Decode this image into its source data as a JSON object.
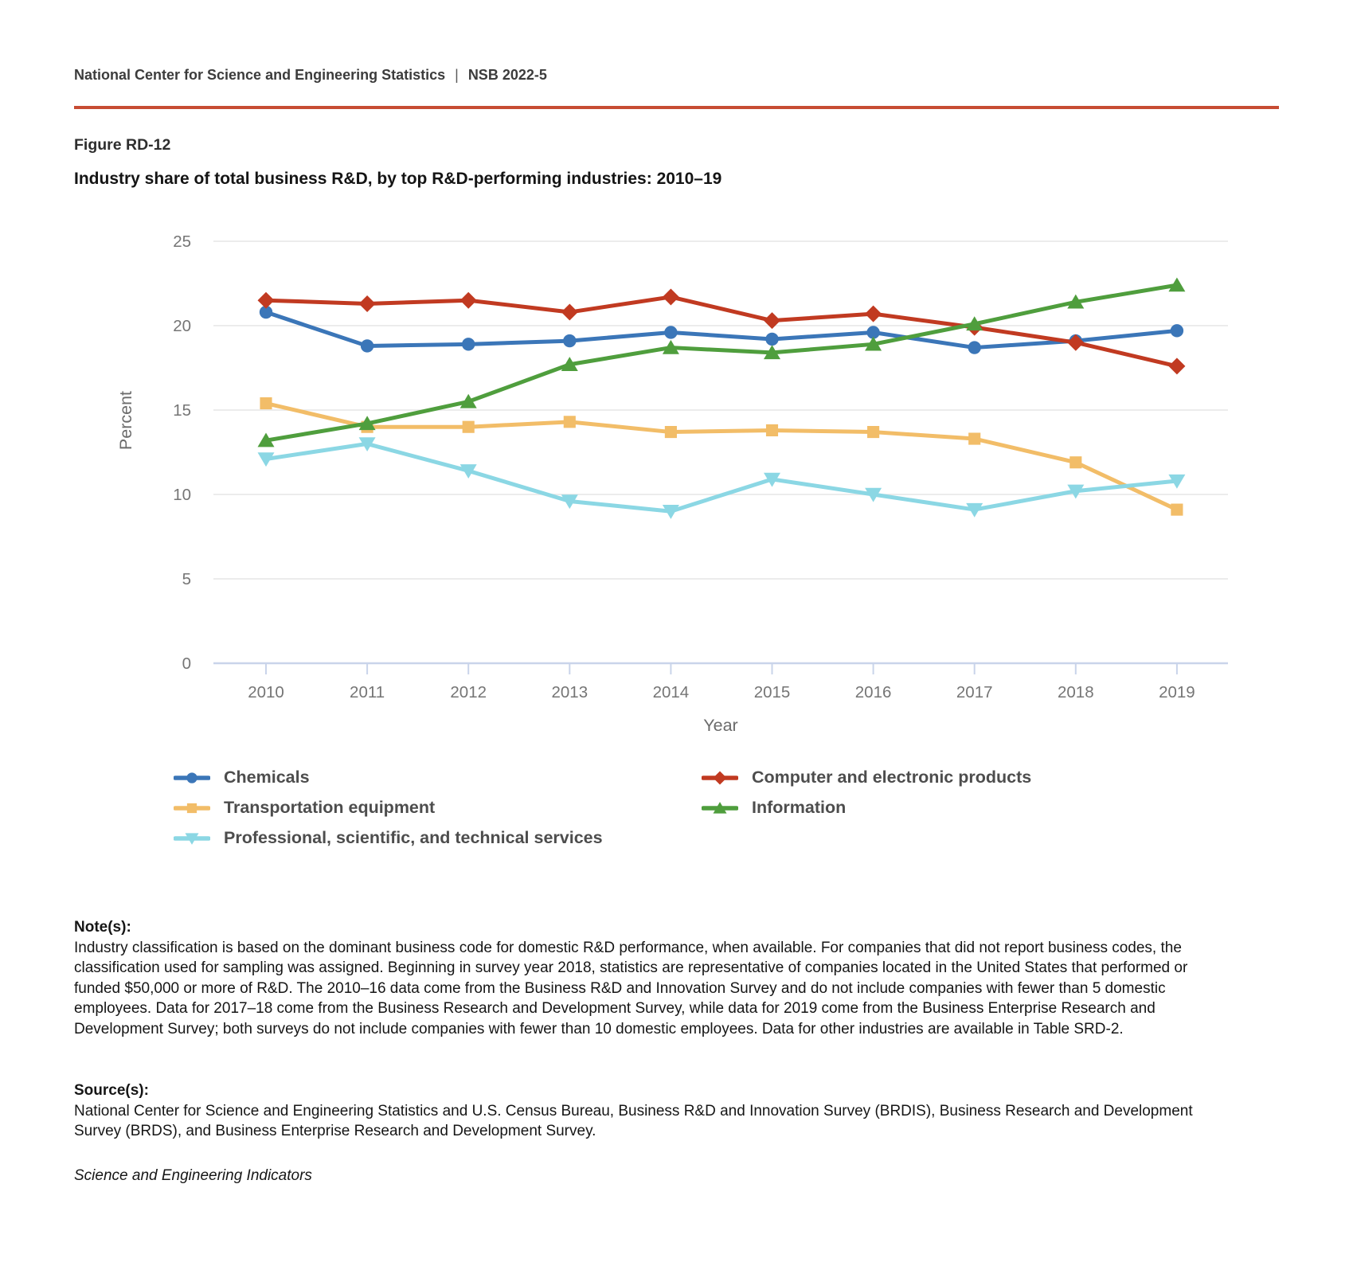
{
  "header": {
    "left": "National Center for Science and Engineering Statistics",
    "separator": "|",
    "right": "NSB 2022-5"
  },
  "figure": {
    "label": "Figure RD-12",
    "title": "Industry share of total business R&D, by top R&D-performing industries: 2010–19"
  },
  "chart_data": {
    "type": "line",
    "x": [
      2010,
      2011,
      2012,
      2013,
      2014,
      2015,
      2016,
      2017,
      2018,
      2019
    ],
    "series": [
      {
        "name": "Chemicals",
        "marker": "circle",
        "color": "#3b76b8",
        "values": [
          20.8,
          18.8,
          18.9,
          19.1,
          19.6,
          19.2,
          19.6,
          18.7,
          19.1,
          19.7
        ]
      },
      {
        "name": "Computer and electronic products",
        "marker": "diamond",
        "color": "#c13a21",
        "values": [
          21.5,
          21.3,
          21.5,
          20.8,
          21.7,
          20.3,
          20.7,
          19.9,
          19.0,
          17.6
        ]
      },
      {
        "name": "Transportation equipment",
        "marker": "square",
        "color": "#f2bd68",
        "values": [
          15.4,
          14.0,
          14.0,
          14.3,
          13.7,
          13.8,
          13.7,
          13.3,
          11.9,
          9.1
        ]
      },
      {
        "name": "Information",
        "marker": "triangle-up",
        "color": "#4f9e3d",
        "values": [
          13.2,
          14.2,
          15.5,
          17.7,
          18.7,
          18.4,
          18.9,
          20.1,
          21.4,
          22.4
        ]
      },
      {
        "name": "Professional, scientific, and technical services",
        "marker": "triangle-down",
        "color": "#8bd7e4",
        "values": [
          12.1,
          13.0,
          11.4,
          9.6,
          9.0,
          10.9,
          10.0,
          9.1,
          10.2,
          10.8
        ]
      }
    ],
    "xlabel": "Year",
    "ylabel": "Percent",
    "ylim": [
      0,
      25
    ],
    "yticks": [
      0,
      5,
      10,
      15,
      20,
      25
    ],
    "grid": true,
    "legend_position": "bottom",
    "colors": {
      "gridline": "#e6e6e6",
      "axis_line": "#c9d4ea",
      "tick_label": "#757575",
      "axis_title": "#6b6b6b"
    }
  },
  "notes": {
    "heading": "Note(s):",
    "body": "Industry classification is based on the dominant business code for domestic R&D performance, when available. For companies that did not report business codes, the classification used for sampling was assigned. Beginning in survey year 2018, statistics are representative of companies located in the United States that performed or funded $50,000 or more of R&D. The 2010–16 data come from the Business R&D and Innovation Survey and do not include companies with fewer than 5 domestic employees. Data for 2017–18 come from the Business Research and Development Survey, while data for 2019 come from the Business Enterprise Research and Development Survey; both surveys do not include companies with fewer than 10 domestic employees. Data for other industries are available in Table SRD-2."
  },
  "sources": {
    "heading": "Source(s):",
    "body": "National Center for Science and Engineering Statistics and U.S. Census Bureau, Business R&D and Innovation Survey (BRDIS), Business Research and Development Survey (BRDS), and Business Enterprise Research and Development Survey."
  },
  "footer": {
    "text": "Science and Engineering Indicators"
  }
}
